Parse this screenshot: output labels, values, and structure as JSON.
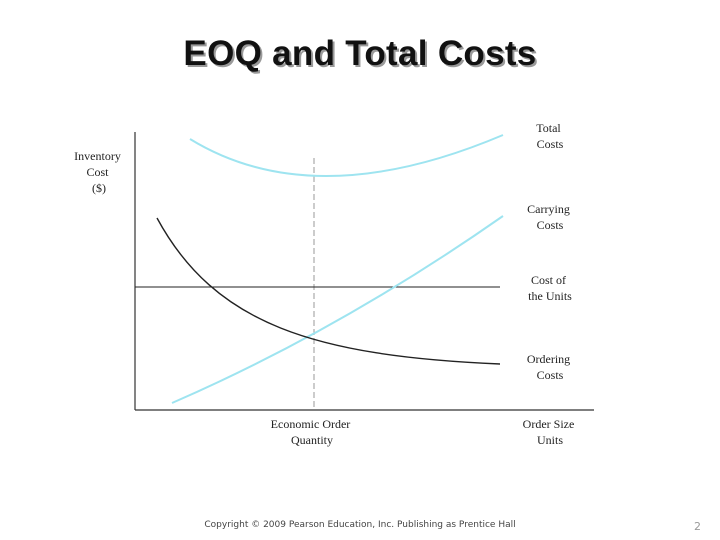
{
  "slide": {
    "title": "EOQ and Total Costs",
    "footer": "Copyright © 2009 Pearson Education, Inc. Publishing as Prentice Hall",
    "page_number": "2"
  },
  "diagram": {
    "y_axis_label": [
      "Inventory",
      "Cost",
      "($)"
    ],
    "x_axis_label": [
      "Order Size",
      "Units"
    ],
    "eoq_label": [
      "Economic Order",
      "Quantity"
    ],
    "curve_labels": {
      "total_costs": [
        "Total",
        "Costs"
      ],
      "carrying_costs": [
        "Carrying",
        "Costs"
      ],
      "cost_of_units": [
        "Cost of",
        "the Units"
      ],
      "ordering_costs": [
        "Ordering",
        "Costs"
      ]
    },
    "colors": {
      "total_costs": "#9ee4f0",
      "carrying_costs": "#9ee4f0",
      "cost_of_units": "#222222",
      "ordering_costs": "#222222",
      "axes": "#333333",
      "eoq_marker": "#999999"
    }
  }
}
